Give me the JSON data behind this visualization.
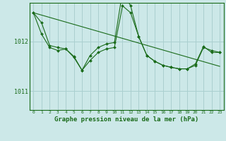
{
  "background_color": "#cce8e8",
  "grid_color": "#aacfcf",
  "line_color": "#1a6b1a",
  "marker_color": "#1a6b1a",
  "xlabel": "Graphe pression niveau de la mer (hPa)",
  "xlabel_fontsize": 6.5,
  "ytick_labels": [
    1011,
    1012
  ],
  "xlim": [
    -0.5,
    23.5
  ],
  "ylim": [
    1010.62,
    1012.78
  ],
  "series1": [
    1012.58,
    1012.38,
    1011.92,
    1011.88,
    1011.85,
    1011.68,
    1011.42,
    1011.62,
    1011.78,
    1011.85,
    1011.88,
    1012.72,
    1012.58,
    1012.1,
    1011.72,
    1011.6,
    1011.52,
    1011.48,
    1011.45,
    1011.45,
    1011.52,
    1011.88,
    1011.82,
    1011.78
  ],
  "series2": [
    1012.58,
    1012.15,
    1011.88,
    1011.82,
    1011.85,
    1011.7,
    1011.42,
    1011.72,
    1011.88,
    1011.95,
    1011.98,
    1013.0,
    1012.72,
    1012.1,
    1011.72,
    1011.6,
    1011.52,
    1011.48,
    1011.45,
    1011.45,
    1011.55,
    1011.9,
    1011.78,
    1011.78
  ],
  "series3_x": [
    0,
    23
  ],
  "series3_y": [
    1012.58,
    1011.5
  ]
}
